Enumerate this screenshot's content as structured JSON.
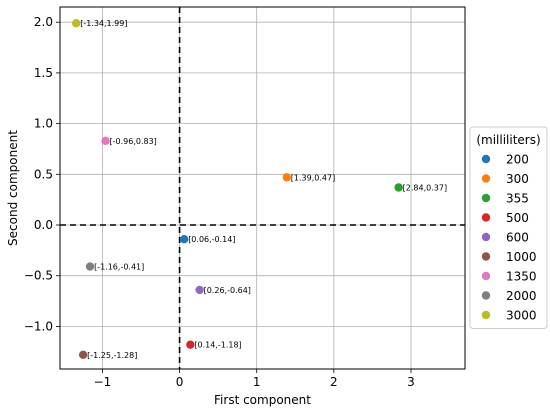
{
  "chart_data": {
    "type": "scatter",
    "xlabel": "First component",
    "ylabel": "Second component",
    "xlim": [
      -1.55,
      3.7
    ],
    "ylim": [
      -1.42,
      2.15
    ],
    "xticks": [
      -1,
      0,
      1,
      2,
      3
    ],
    "yticks": [
      -1.0,
      -0.5,
      0.0,
      0.5,
      1.0,
      1.5,
      2.0
    ],
    "ytick_labels": [
      "−1.0",
      "−0.5",
      "0.0",
      "0.5",
      "1.0",
      "1.5",
      "2.0"
    ],
    "xtick_labels": [
      "−1",
      "0",
      "1",
      "2",
      "3"
    ],
    "grid": true,
    "reference_lines": {
      "x": 0,
      "y": 0,
      "style": "dashed"
    },
    "legend": {
      "title": "(milliliters)",
      "placement": "outside-right"
    },
    "series": [
      {
        "name": "200",
        "color": "#1f77b4",
        "x": 0.06,
        "y": -0.14,
        "label": "[0.06,-0.14]"
      },
      {
        "name": "300",
        "color": "#ff7f0e",
        "x": 1.39,
        "y": 0.47,
        "label": "[1.39,0.47]"
      },
      {
        "name": "355",
        "color": "#2ca02c",
        "x": 2.84,
        "y": 0.37,
        "label": "[2.84,0.37]"
      },
      {
        "name": "500",
        "color": "#d62728",
        "x": 0.14,
        "y": -1.18,
        "label": "[0.14,-1.18]"
      },
      {
        "name": "600",
        "color": "#9467bd",
        "x": 0.26,
        "y": -0.64,
        "label": "[0.26,-0.64]"
      },
      {
        "name": "1000",
        "color": "#8c564b",
        "x": -1.25,
        "y": -1.28,
        "label": "[-1.25,-1.28]"
      },
      {
        "name": "1350",
        "color": "#e377c2",
        "x": -0.96,
        "y": 0.83,
        "label": "[-0.96,0.83]"
      },
      {
        "name": "2000",
        "color": "#7f7f7f",
        "x": -1.16,
        "y": -0.41,
        "label": "[-1.16,-0.41]"
      },
      {
        "name": "3000",
        "color": "#bcbd22",
        "x": -1.34,
        "y": 1.99,
        "label": "[-1.34,1.99]"
      }
    ]
  }
}
